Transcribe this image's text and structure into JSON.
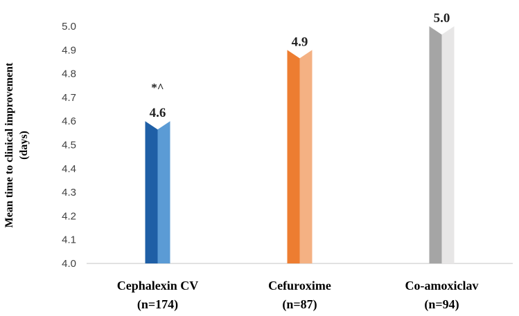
{
  "chart_data": {
    "type": "bar",
    "title": "",
    "ylabel_lines": [
      "Mean time to clinical improvement",
      "(days)"
    ],
    "xlabel": "",
    "ylim": [
      4.0,
      5.0
    ],
    "yticks": [
      "4.0",
      "4.1",
      "4.2",
      "4.3",
      "4.4",
      "4.5",
      "4.6",
      "4.7",
      "4.8",
      "4.9",
      "5.0"
    ],
    "grid": false,
    "categories": [
      {
        "name": "Cephalexin CV",
        "n": "(n=174)",
        "value": 4.6,
        "label": "4.6",
        "annotation": "*^",
        "color_dark": "#1f5fa6",
        "color_light": "#5b9bd5"
      },
      {
        "name": "Cefuroxime",
        "n": "(n=87)",
        "value": 4.9,
        "label": "4.9",
        "annotation": "",
        "color_dark": "#ed7d31",
        "color_light": "#f4b183"
      },
      {
        "name": "Co-amoxiclav",
        "n": "(n=94)",
        "value": 5.0,
        "label": "5.0",
        "annotation": "",
        "color_dark": "#a5a5a5",
        "color_light": "#e7e6e6"
      }
    ]
  }
}
